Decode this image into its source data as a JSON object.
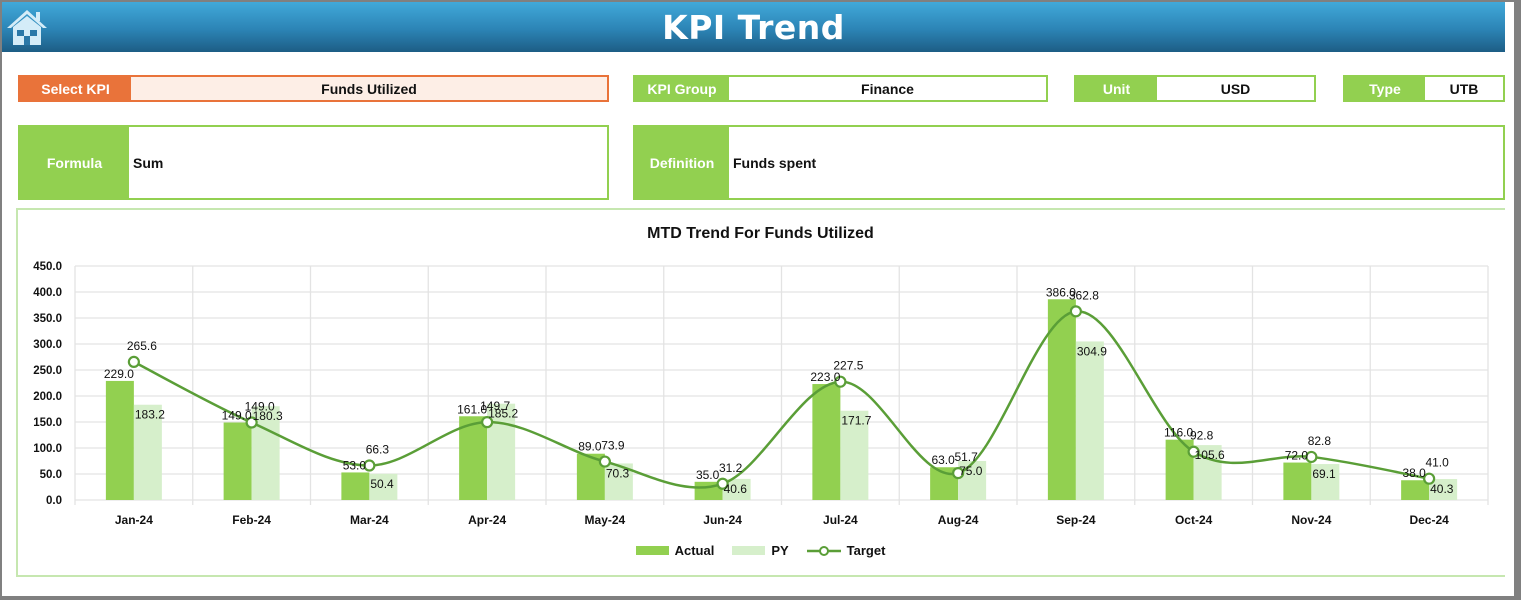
{
  "header": {
    "title": "KPI Trend",
    "home_icon": "home-icon"
  },
  "fields": {
    "select_kpi": {
      "label": "Select KPI",
      "value": "Funds Utilized"
    },
    "kpi_group": {
      "label": "KPI Group",
      "value": "Finance"
    },
    "unit": {
      "label": "Unit",
      "value": "USD"
    },
    "type": {
      "label": "Type",
      "value": "UTB"
    },
    "formula": {
      "label": "Formula",
      "value": "Sum"
    },
    "definition": {
      "label": "Definition",
      "value": "Funds spent"
    }
  },
  "colors": {
    "header_top": "#41a9da",
    "header_bottom": "#1d5d85",
    "accent_green": "#92d050",
    "accent_orange": "#e9733a",
    "actual": "#92d050",
    "py": "#d6efcb",
    "target": "#5a9e37"
  },
  "chart_data": {
    "type": "bar",
    "title": "MTD Trend For Funds Utilized",
    "xlabel": "",
    "ylabel": "",
    "ylim": [
      0,
      450
    ],
    "yticks": [
      "0.0",
      "50.0",
      "100.0",
      "150.0",
      "200.0",
      "250.0",
      "300.0",
      "350.0",
      "400.0",
      "450.0"
    ],
    "grid": true,
    "legend_position": "bottom",
    "categories": [
      "Jan-24",
      "Feb-24",
      "Mar-24",
      "Apr-24",
      "May-24",
      "Jun-24",
      "Jul-24",
      "Aug-24",
      "Sep-24",
      "Oct-24",
      "Nov-24",
      "Dec-24"
    ],
    "series": [
      {
        "name": "Actual",
        "type": "bar",
        "values": [
          229.0,
          149.0,
          53.0,
          161.0,
          89.0,
          35.0,
          223.0,
          63.0,
          386.0,
          116.0,
          72.0,
          38.0
        ]
      },
      {
        "name": "PY",
        "type": "bar",
        "values": [
          183.2,
          180.3,
          50.4,
          185.2,
          70.3,
          40.6,
          171.7,
          75.0,
          304.9,
          105.6,
          69.1,
          40.3
        ]
      },
      {
        "name": "Target",
        "type": "line",
        "smooth": true,
        "values": [
          265.6,
          149.0,
          66.3,
          149.7,
          73.9,
          31.2,
          227.5,
          51.7,
          362.8,
          92.8,
          82.8,
          41.0
        ]
      }
    ],
    "legend": [
      "Actual",
      "PY",
      "Target"
    ]
  }
}
